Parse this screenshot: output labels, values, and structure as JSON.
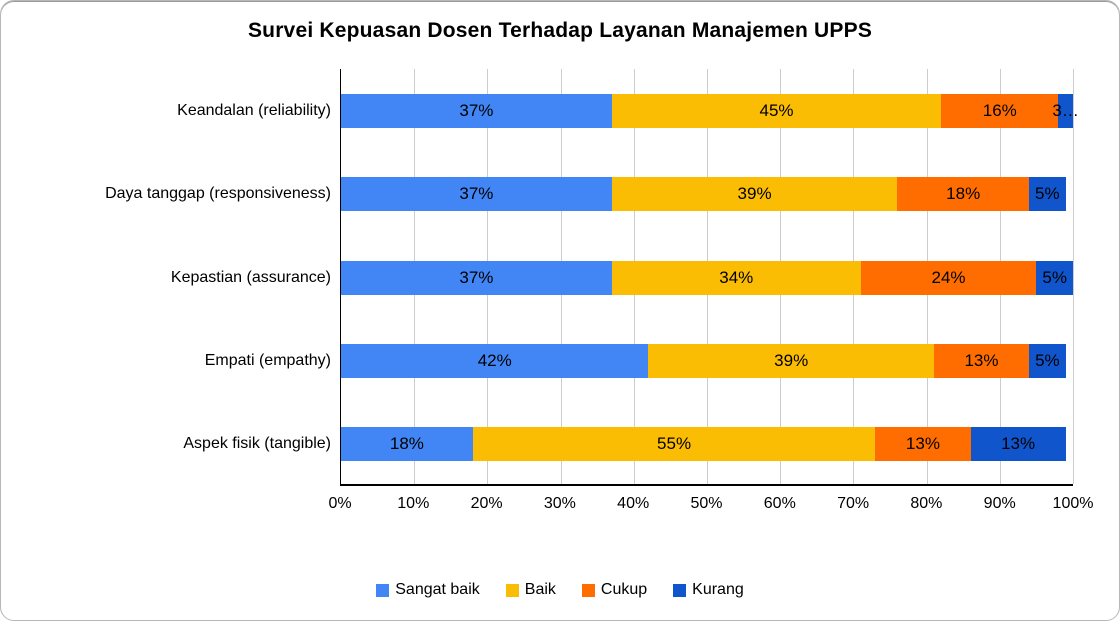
{
  "chart_data": {
    "type": "bar",
    "orientation": "horizontal",
    "stacked": true,
    "title": "Survei Kepuasan Dosen Terhadap Layanan Manajemen UPPS",
    "categories": [
      "Keandalan (reliability)",
      "Daya tanggap (responsiveness)",
      "Kepastian (assurance)",
      "Empati (empathy)",
      "Aspek fisik (tangible)"
    ],
    "series": [
      {
        "name": "Sangat baik",
        "color": "#4285F4",
        "values": [
          37,
          37,
          37,
          42,
          18
        ],
        "labels": [
          "37%",
          "37%",
          "37%",
          "42%",
          "18%"
        ]
      },
      {
        "name": "Baik",
        "color": "#FBBC04",
        "values": [
          45,
          39,
          34,
          39,
          55
        ],
        "labels": [
          "45%",
          "39%",
          "34%",
          "39%",
          "55%"
        ]
      },
      {
        "name": "Cukup",
        "color": "#FF6D01",
        "values": [
          16,
          18,
          24,
          13,
          13
        ],
        "labels": [
          "16%",
          "18%",
          "24%",
          "13%",
          "13%"
        ]
      },
      {
        "name": "Kurang",
        "color": "#1155CC",
        "values": [
          3,
          5,
          5,
          5,
          13
        ],
        "labels": [
          "3…",
          "5%",
          "5%",
          "5%",
          "13%"
        ]
      }
    ],
    "x_axis": {
      "min": 0,
      "max": 100,
      "tick_step": 10,
      "ticks": [
        "0%",
        "10%",
        "20%",
        "30%",
        "40%",
        "50%",
        "60%",
        "70%",
        "80%",
        "90%",
        "100%"
      ]
    },
    "grid": true,
    "gridline_color": "#CCCCCC",
    "bar_label_color": "#000000",
    "legend_position": "bottom"
  }
}
